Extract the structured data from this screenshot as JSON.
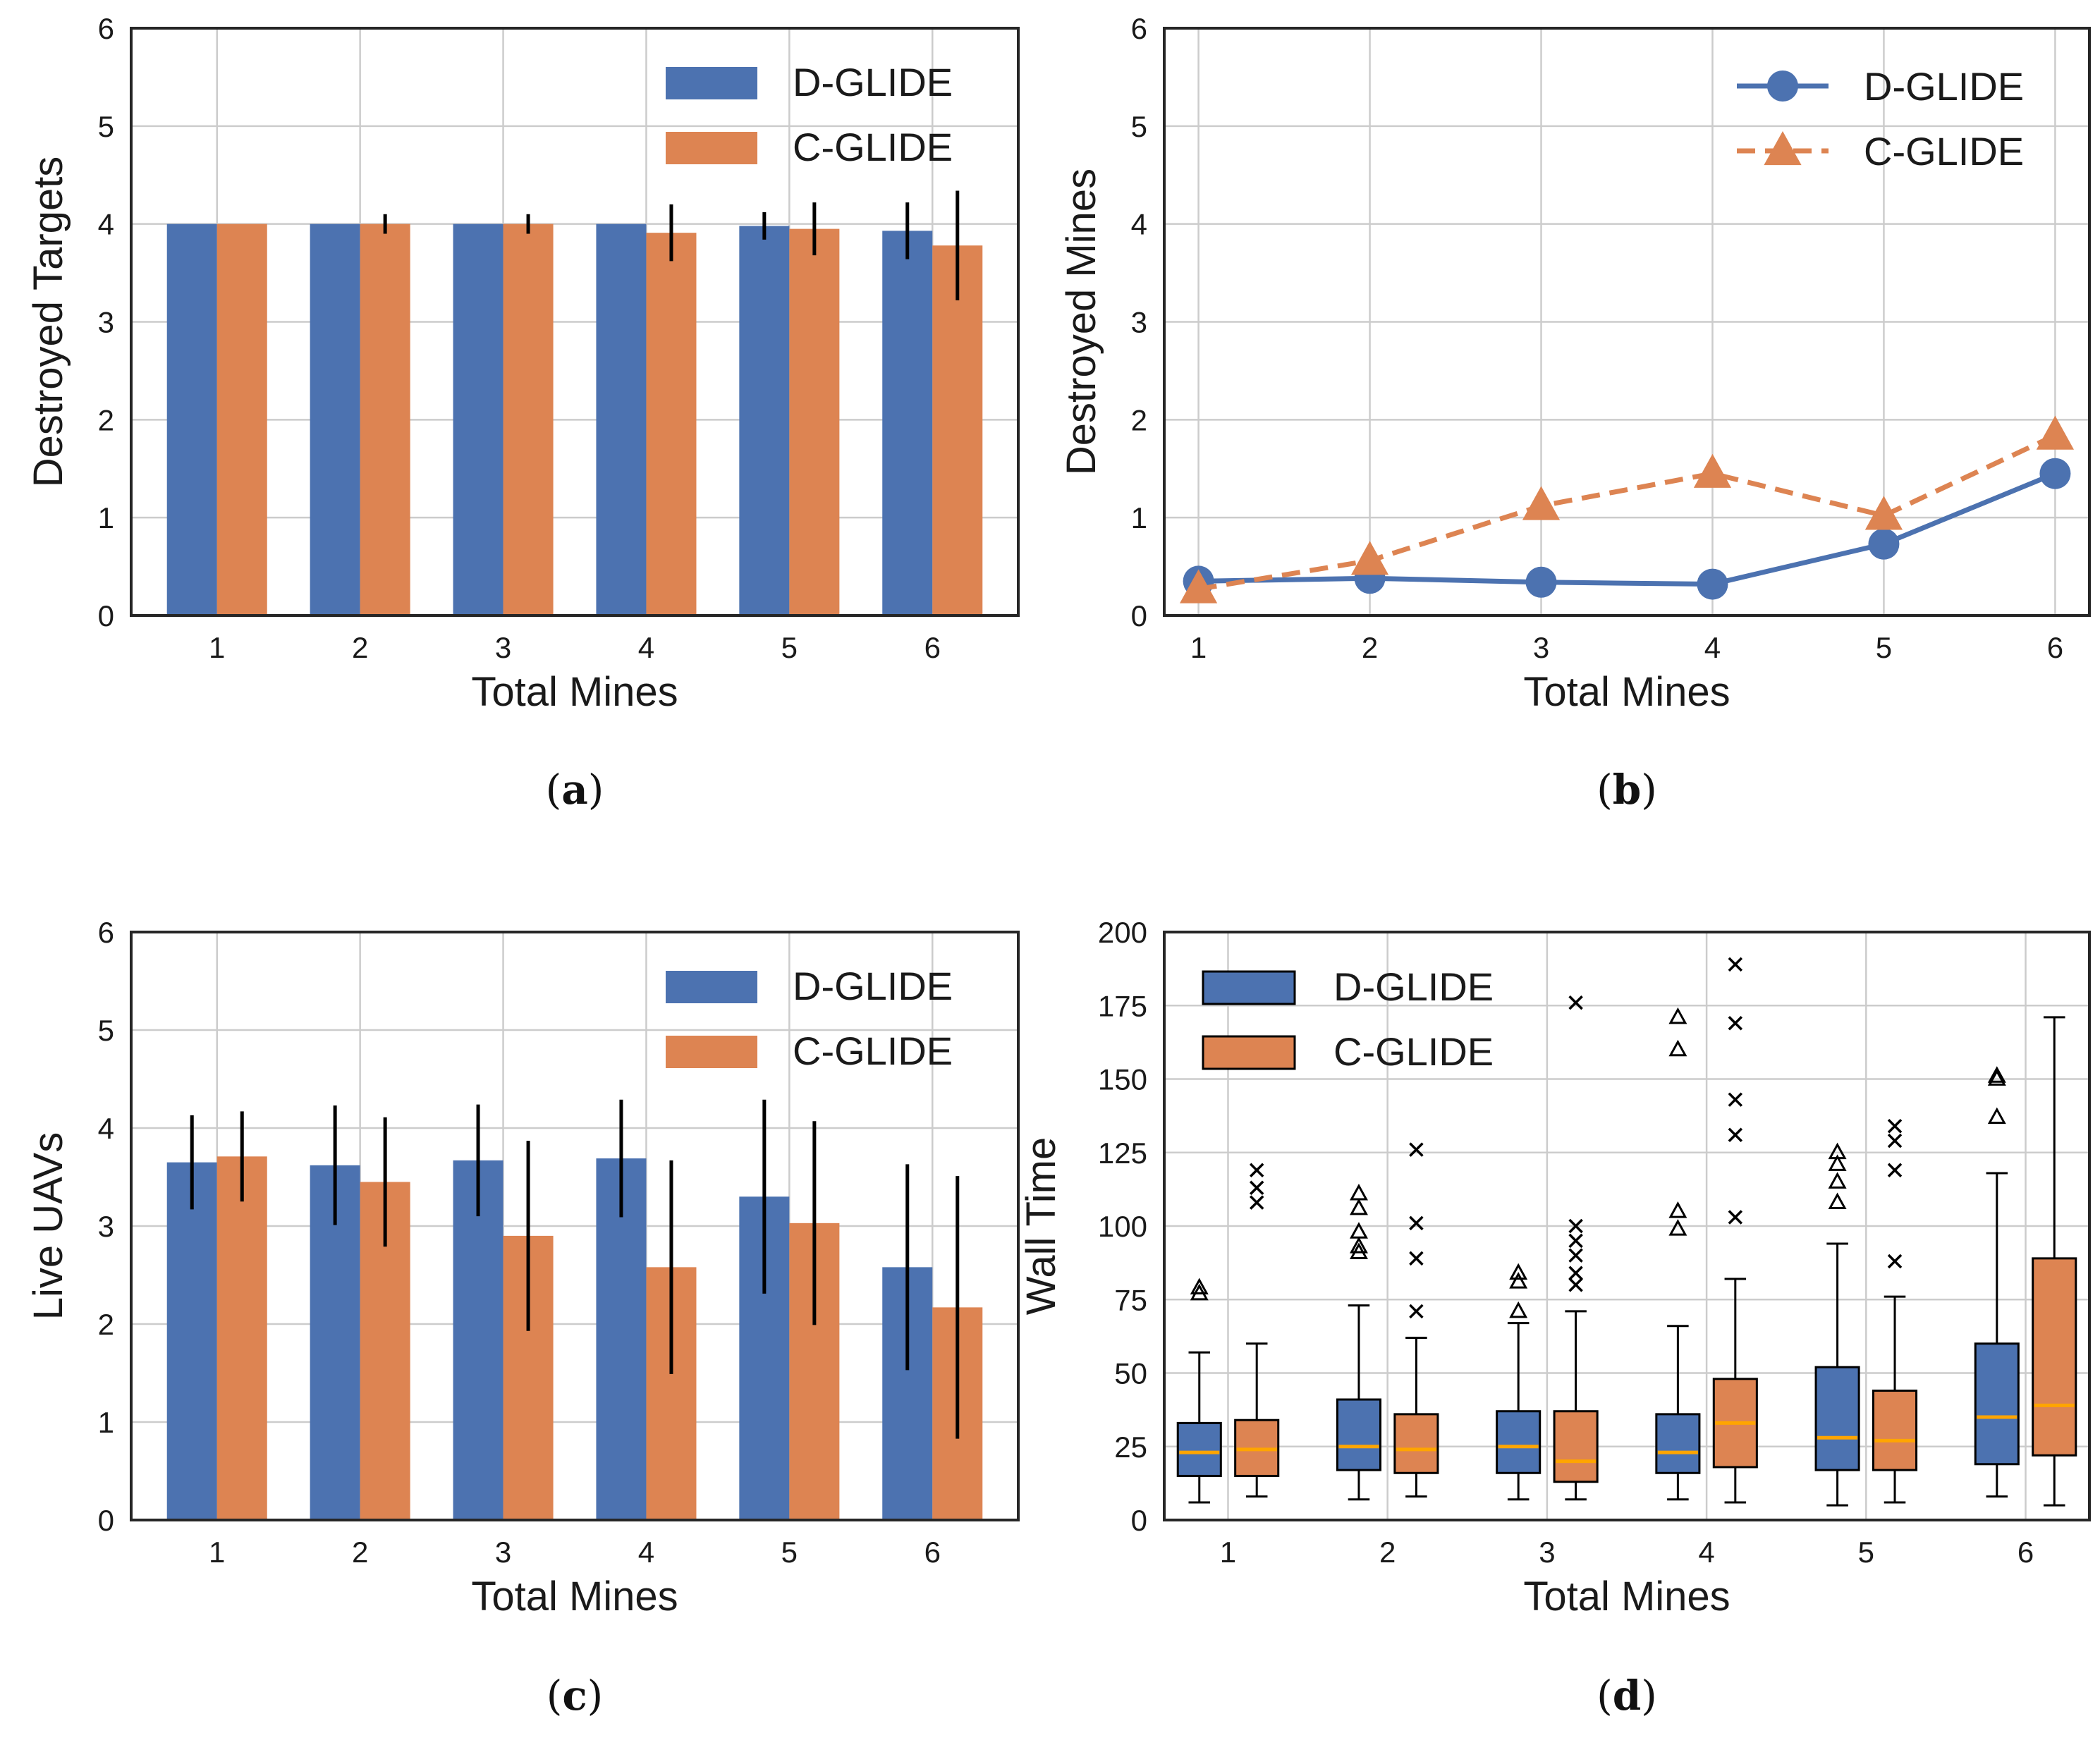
{
  "colors": {
    "dglide": "#4c72b0",
    "cglide": "#dd8452",
    "median": "#ffa500",
    "grid": "#cccccc",
    "axes": "#262626"
  },
  "chart_data": [
    {
      "id": "a",
      "type": "bar",
      "caption_letter": "a",
      "caption": "(a)",
      "xlabel": "Total Mines",
      "ylabel": "Destroyed Targets",
      "ylim": [
        0,
        6
      ],
      "yticks": [
        "0",
        "1",
        "2",
        "3",
        "4",
        "5",
        "6"
      ],
      "categories": [
        "1",
        "2",
        "3",
        "4",
        "5",
        "6"
      ],
      "legend_position": "top-right",
      "series": [
        {
          "name": "D-GLIDE",
          "values": [
            4.0,
            4.0,
            4.0,
            4.0,
            3.98,
            3.93
          ],
          "err": [
            0,
            0,
            0,
            0,
            0.14,
            0.29
          ]
        },
        {
          "name": "C-GLIDE",
          "values": [
            4.0,
            4.0,
            4.0,
            3.91,
            3.95,
            3.78
          ],
          "err": [
            0,
            0.1,
            0.1,
            0.29,
            0.27,
            0.56
          ]
        }
      ]
    },
    {
      "id": "b",
      "type": "line",
      "caption_letter": "b",
      "caption": "(b)",
      "xlabel": "Total Mines",
      "ylabel": "Destroyed Mines",
      "ylim": [
        0,
        6
      ],
      "yticks": [
        "0",
        "1",
        "2",
        "3",
        "4",
        "5",
        "6"
      ],
      "x": [
        "1",
        "2",
        "3",
        "4",
        "5",
        "6"
      ],
      "legend_position": "top-right",
      "series": [
        {
          "name": "D-GLIDE",
          "values": [
            0.35,
            0.38,
            0.34,
            0.32,
            0.73,
            1.45
          ],
          "marker": "circle",
          "style": "solid"
        },
        {
          "name": "C-GLIDE",
          "values": [
            0.27,
            0.56,
            1.12,
            1.45,
            1.02,
            1.84
          ],
          "marker": "triangle",
          "style": "dashed"
        }
      ]
    },
    {
      "id": "c",
      "type": "bar",
      "caption_letter": "c",
      "caption": "(c)",
      "xlabel": "Total Mines",
      "ylabel": "Live UAVs",
      "ylim": [
        0,
        6
      ],
      "yticks": [
        "0",
        "1",
        "2",
        "3",
        "4",
        "5",
        "6"
      ],
      "categories": [
        "1",
        "2",
        "3",
        "4",
        "5",
        "6"
      ],
      "legend_position": "top-right",
      "series": [
        {
          "name": "D-GLIDE",
          "values": [
            3.65,
            3.62,
            3.67,
            3.69,
            3.3,
            2.58
          ],
          "err": [
            0.48,
            0.61,
            0.57,
            0.6,
            0.99,
            1.05
          ]
        },
        {
          "name": "C-GLIDE",
          "values": [
            3.71,
            3.45,
            2.9,
            2.58,
            3.03,
            2.17
          ],
          "err": [
            0.46,
            0.66,
            0.97,
            1.09,
            1.04,
            1.34
          ]
        }
      ]
    },
    {
      "id": "d",
      "type": "box",
      "caption_letter": "d",
      "caption": "(d)",
      "xlabel": "Total Mines",
      "ylabel": "Wall Time",
      "ylim": [
        0,
        200
      ],
      "yticks": [
        "0",
        "25",
        "50",
        "75",
        "100",
        "125",
        "150",
        "175",
        "200"
      ],
      "categories": [
        "1",
        "2",
        "3",
        "4",
        "5",
        "6"
      ],
      "legend_position": "top-left",
      "series": [
        {
          "name": "D-GLIDE",
          "outlier_marker": "triangle",
          "boxes": [
            {
              "whislo": 6,
              "q1": 15,
              "med": 23,
              "q3": 33,
              "whishi": 57,
              "fliers": [
                77,
                79
              ]
            },
            {
              "whislo": 7,
              "q1": 17,
              "med": 25,
              "q3": 41,
              "whishi": 73,
              "fliers": [
                91,
                93,
                98,
                106,
                111
              ]
            },
            {
              "whislo": 7,
              "q1": 16,
              "med": 25,
              "q3": 37,
              "whishi": 67,
              "fliers": [
                71,
                81,
                84
              ]
            },
            {
              "whislo": 7,
              "q1": 16,
              "med": 23,
              "q3": 36,
              "whishi": 66,
              "fliers": [
                99,
                105,
                160,
                171
              ]
            },
            {
              "whislo": 5,
              "q1": 17,
              "med": 28,
              "q3": 52,
              "whishi": 94,
              "fliers": [
                108,
                115,
                121,
                125
              ]
            },
            {
              "whislo": 8,
              "q1": 19,
              "med": 35,
              "q3": 60,
              "whishi": 118,
              "fliers": [
                137,
                150,
                151
              ]
            }
          ]
        },
        {
          "name": "C-GLIDE",
          "outlier_marker": "x",
          "boxes": [
            {
              "whislo": 8,
              "q1": 15,
              "med": 24,
              "q3": 34,
              "whishi": 60,
              "fliers": [
                108,
                113,
                119
              ]
            },
            {
              "whislo": 8,
              "q1": 16,
              "med": 24,
              "q3": 36,
              "whishi": 62,
              "fliers": [
                71,
                89,
                101,
                126
              ]
            },
            {
              "whislo": 7,
              "q1": 13,
              "med": 20,
              "q3": 37,
              "whishi": 71,
              "fliers": [
                80,
                84,
                90,
                95,
                100,
                176
              ]
            },
            {
              "whislo": 6,
              "q1": 18,
              "med": 33,
              "q3": 48,
              "whishi": 82,
              "fliers": [
                103,
                131,
                143,
                169,
                189
              ]
            },
            {
              "whislo": 6,
              "q1": 17,
              "med": 27,
              "q3": 44,
              "whishi": 76,
              "fliers": [
                88,
                119,
                129,
                134
              ]
            },
            {
              "whislo": 5,
              "q1": 22,
              "med": 39,
              "q3": 89,
              "whishi": 171,
              "fliers": []
            }
          ]
        }
      ]
    }
  ]
}
